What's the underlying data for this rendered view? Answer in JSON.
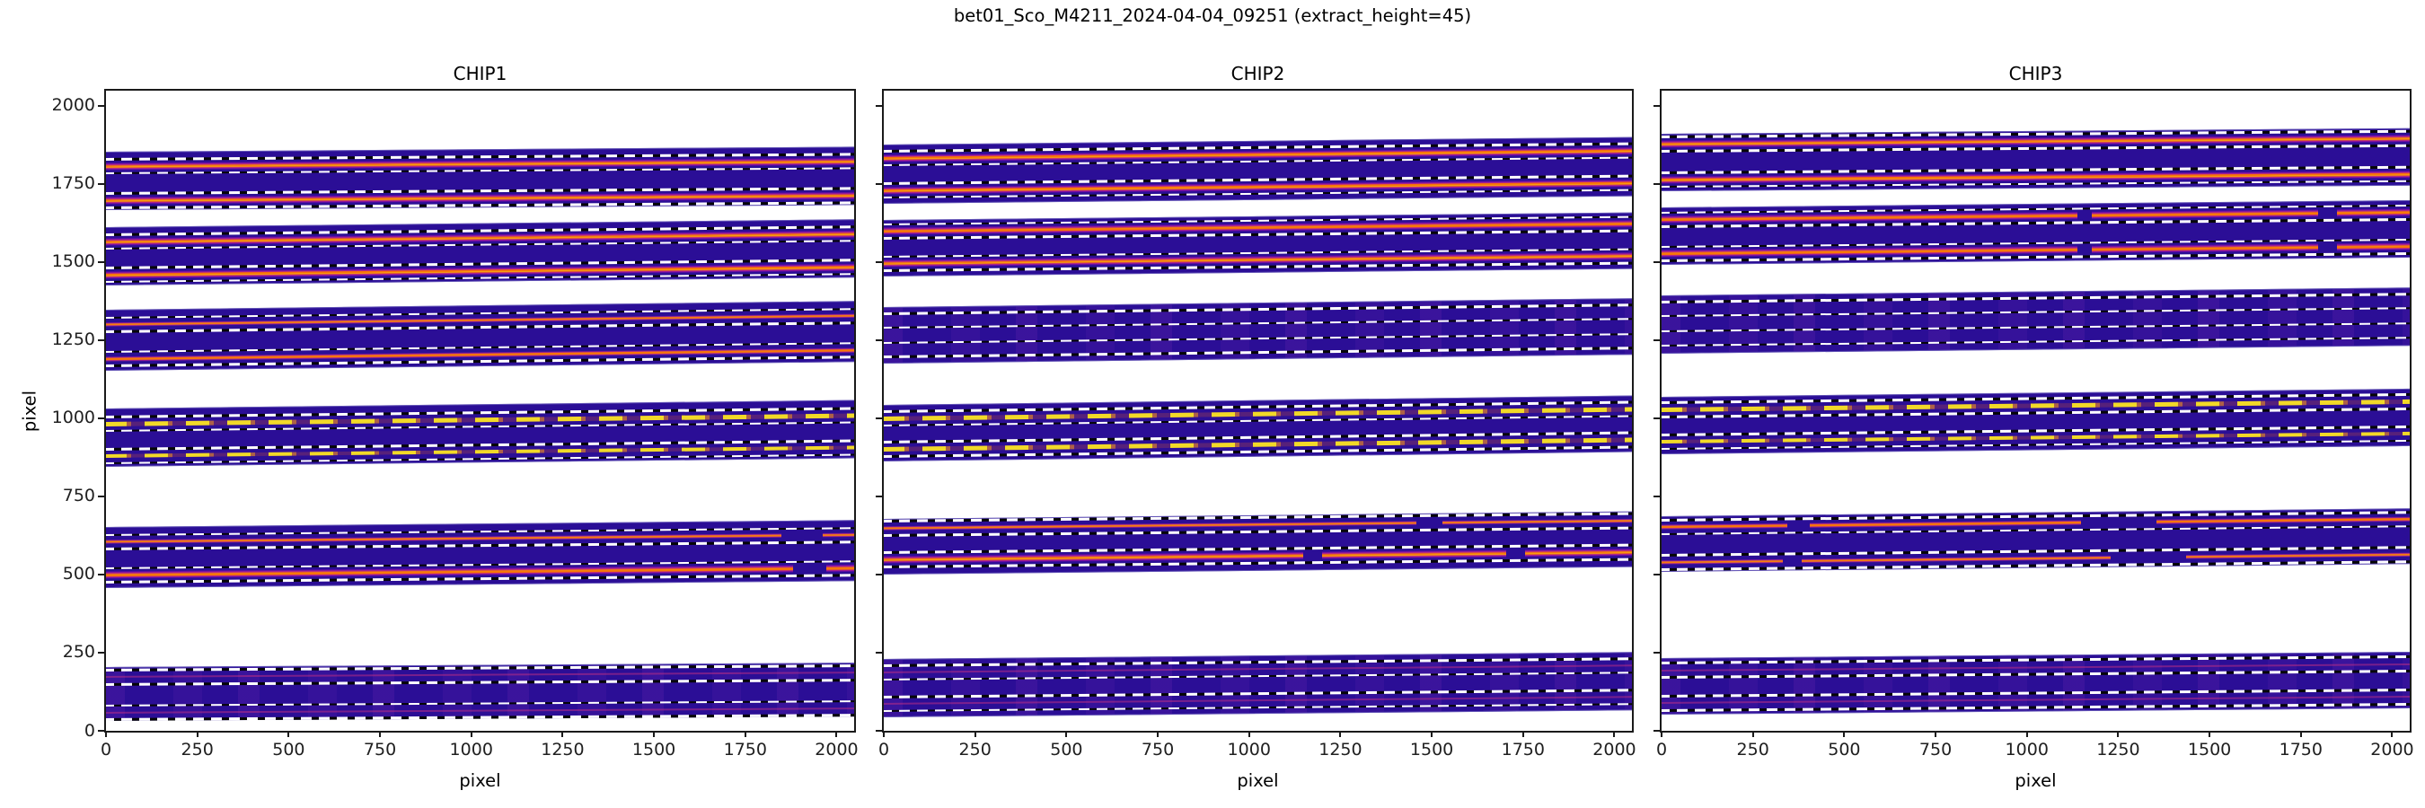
{
  "figure": {
    "title": "bet01_Sco_M4211_2024-04-04_09251  (extract_height=45)",
    "background": "#ffffff"
  },
  "chart_data": {
    "type": "heatmap",
    "title": "bet01_Sco_M4211_2024-04-04_09251  (extract_height=45)",
    "subtitle_note": "spectral order traces with extraction windows, extract_height=45 (boundaries at trace ±22.5 px)",
    "extract_height": 45,
    "xlabel": "pixel",
    "ylabel": "pixel",
    "xlim": [
      0,
      2048
    ],
    "ylim": [
      0,
      2048
    ],
    "xticks": [
      0,
      250,
      500,
      750,
      1000,
      1250,
      1500,
      1750,
      2000
    ],
    "yticks": [
      0,
      250,
      500,
      750,
      1000,
      1250,
      1500,
      1750,
      2000
    ],
    "grid": false,
    "legend": "none",
    "colors": {
      "band_background": "#2b0e96",
      "trace_core_yellow": "#fde724",
      "trace_orange": "#ee7210",
      "fitted_line_orange": "#f97306",
      "trace_magenta": "#b3248e",
      "trace_purple": "#6a0aa8",
      "boundary_dash_white": "#ffffff",
      "boundary_dash_black": "#060606",
      "spine": "#1a1a1a",
      "figure_background": "#ffffff"
    },
    "panels": [
      {
        "title": "CHIP1",
        "orders": [
          {
            "band": [
              38,
              205
            ],
            "slope": 14,
            "smudge": true,
            "traces": [
              {
                "y": 62,
                "style": "faint"
              },
              {
                "y": 175,
                "style": "faint"
              }
            ]
          },
          {
            "band": [
              462,
              652
            ],
            "slope": 22,
            "smudge": false,
            "traces": [
              {
                "y": 500,
                "style": "bright",
                "gaps": [
                  [
                    0.915,
                    0.96
                  ]
                ]
              },
              {
                "y": 607,
                "style": "medium",
                "gaps": [
                  [
                    0.9,
                    0.955
                  ]
                ]
              }
            ]
          },
          {
            "band": [
              852,
              1032
            ],
            "slope": 27,
            "smudge": false,
            "traces": [
              {
                "y": 882,
                "style": "dotted"
              },
              {
                "y": 985,
                "style": "dotted"
              }
            ]
          },
          {
            "band": [
              1158,
              1347
            ],
            "slope": 28,
            "smudge": false,
            "traces": [
              {
                "y": 1192,
                "style": "medium"
              },
              {
                "y": 1302,
                "style": "medium"
              }
            ]
          },
          {
            "band": [
              1432,
              1612
            ],
            "slope": 25,
            "smudge": false,
            "traces": [
              {
                "y": 1462,
                "style": "bright"
              },
              {
                "y": 1568,
                "style": "bright"
              }
            ]
          },
          {
            "band": [
              1670,
              1852
            ],
            "slope": 16,
            "smudge": false,
            "traces": [
              {
                "y": 1698,
                "style": "bright"
              },
              {
                "y": 1808,
                "style": "bright"
              }
            ]
          }
        ]
      },
      {
        "title": "CHIP2",
        "orders": [
          {
            "band": [
              48,
              230
            ],
            "slope": 22,
            "smudge": true,
            "traces": [
              {
                "y": 89,
                "style": "faint"
              },
              {
                "y": 189,
                "style": "faint"
              }
            ]
          },
          {
            "band": [
              504,
              677
            ],
            "slope": 24,
            "smudge": false,
            "traces": [
              {
                "y": 549,
                "style": "bright",
                "gaps": [
                  [
                    0.56,
                    0.585
                  ],
                  [
                    0.83,
                    0.855
                  ]
                ]
              },
              {
                "y": 650,
                "style": "medium",
                "gaps": [
                  [
                    0.71,
                    0.745
                  ]
                ]
              }
            ]
          },
          {
            "band": [
              869,
              1044
            ],
            "slope": 30,
            "smudge": false,
            "traces": [
              {
                "y": 905,
                "style": "dotted"
              },
              {
                "y": 1003,
                "style": "dotted"
              }
            ]
          },
          {
            "band": [
              1181,
              1356
            ],
            "slope": 28,
            "smudge": true,
            "traces": [
              {
                "y": 1222,
                "style": "none"
              },
              {
                "y": 1315,
                "style": "none"
              }
            ]
          },
          {
            "band": [
              1461,
              1635
            ],
            "slope": 24,
            "smudge": false,
            "traces": [
              {
                "y": 1498,
                "style": "bright"
              },
              {
                "y": 1601,
                "style": "bright"
              }
            ]
          },
          {
            "band": [
              1691,
              1875
            ],
            "slope": 24,
            "smudge": false,
            "traces": [
              {
                "y": 1731,
                "style": "bright"
              },
              {
                "y": 1834,
                "style": "bright"
              }
            ]
          }
        ]
      },
      {
        "title": "CHIP3",
        "orders": [
          {
            "band": [
              59,
              234
            ],
            "slope": 20,
            "smudge": true,
            "traces": [
              {
                "y": 92,
                "style": "faint"
              },
              {
                "y": 198,
                "style": "faint"
              }
            ]
          },
          {
            "band": [
              513,
              686
            ],
            "slope": 25,
            "smudge": false,
            "traces": [
              {
                "y": 541,
                "style": "medium",
                "gaps": [
                  [
                    0.165,
                    0.19
                  ],
                  [
                    0.6,
                    0.7
                  ]
                ]
              },
              {
                "y": 654,
                "style": "medium",
                "gaps": [
                  [
                    0.17,
                    0.2
                  ],
                  [
                    0.56,
                    0.66
                  ]
                ]
              }
            ]
          },
          {
            "band": [
              891,
              1069
            ],
            "slope": 26,
            "smudge": false,
            "traces": [
              {
                "y": 928,
                "style": "dotted"
              },
              {
                "y": 1030,
                "style": "dotted"
              }
            ]
          },
          {
            "band": [
              1211,
              1393
            ],
            "slope": 25,
            "smudge": true,
            "traces": [
              {
                "y": 1258,
                "style": "none"
              },
              {
                "y": 1352,
                "style": "none"
              }
            ]
          },
          {
            "band": [
              1498,
              1676
            ],
            "slope": 23,
            "smudge": false,
            "traces": [
              {
                "y": 1530,
                "style": "bright",
                "gaps": [
                  [
                    0.555,
                    0.575
                  ],
                  [
                    0.875,
                    0.9
                  ]
                ]
              },
              {
                "y": 1639,
                "style": "bright",
                "gaps": [
                  [
                    0.555,
                    0.575
                  ],
                  [
                    0.875,
                    0.9
                  ]
                ]
              }
            ]
          },
          {
            "band": [
              1731,
              1909
            ],
            "slope": 18,
            "smudge": false,
            "traces": [
              {
                "y": 1765,
                "style": "bright"
              },
              {
                "y": 1879,
                "style": "bright"
              }
            ]
          }
        ]
      }
    ]
  }
}
